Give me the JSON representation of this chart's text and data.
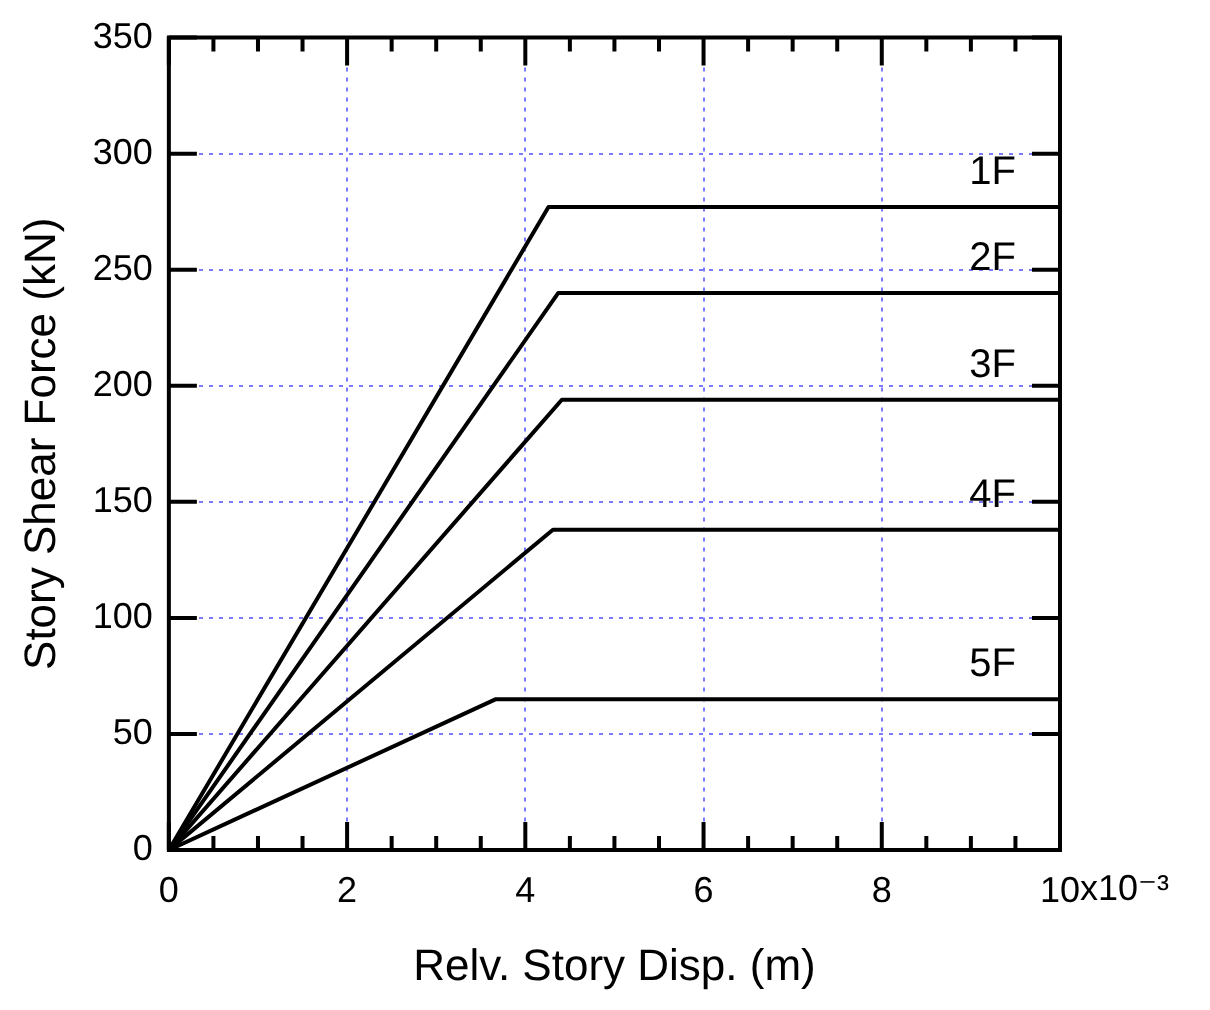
{
  "chart_data": {
    "type": "line",
    "xlabel": "Relv. Story Disp. (m)",
    "ylabel": "Story Shear Force (kN)",
    "xlim": [
      0,
      10
    ],
    "xticks": [
      0,
      2,
      4,
      6,
      8,
      10
    ],
    "annotations": [
      "x10⁻³"
    ],
    "ylim": [
      0,
      350
    ],
    "yticks": [
      0,
      50,
      100,
      150,
      200,
      250,
      300,
      350
    ],
    "grid": true,
    "legend": "right",
    "marker": "none",
    "line_style": "solid",
    "series": [
      {
        "name": "1F",
        "color": "#000000",
        "x": [
          0,
          4.26,
          10
        ],
        "values": [
          0,
          277,
          277
        ]
      },
      {
        "name": "2F",
        "color": "#000000",
        "x": [
          0,
          4.37,
          10
        ],
        "values": [
          0,
          240,
          240
        ]
      },
      {
        "name": "3F",
        "color": "#000000",
        "x": [
          0,
          4.41,
          10
        ],
        "values": [
          0,
          194,
          194
        ]
      },
      {
        "name": "4F",
        "color": "#000000",
        "x": [
          0,
          4.31,
          10
        ],
        "values": [
          0,
          138,
          138
        ]
      },
      {
        "name": "5F",
        "color": "#000000",
        "x": [
          0,
          3.67,
          10
        ],
        "values": [
          0,
          65,
          65
        ]
      }
    ]
  }
}
